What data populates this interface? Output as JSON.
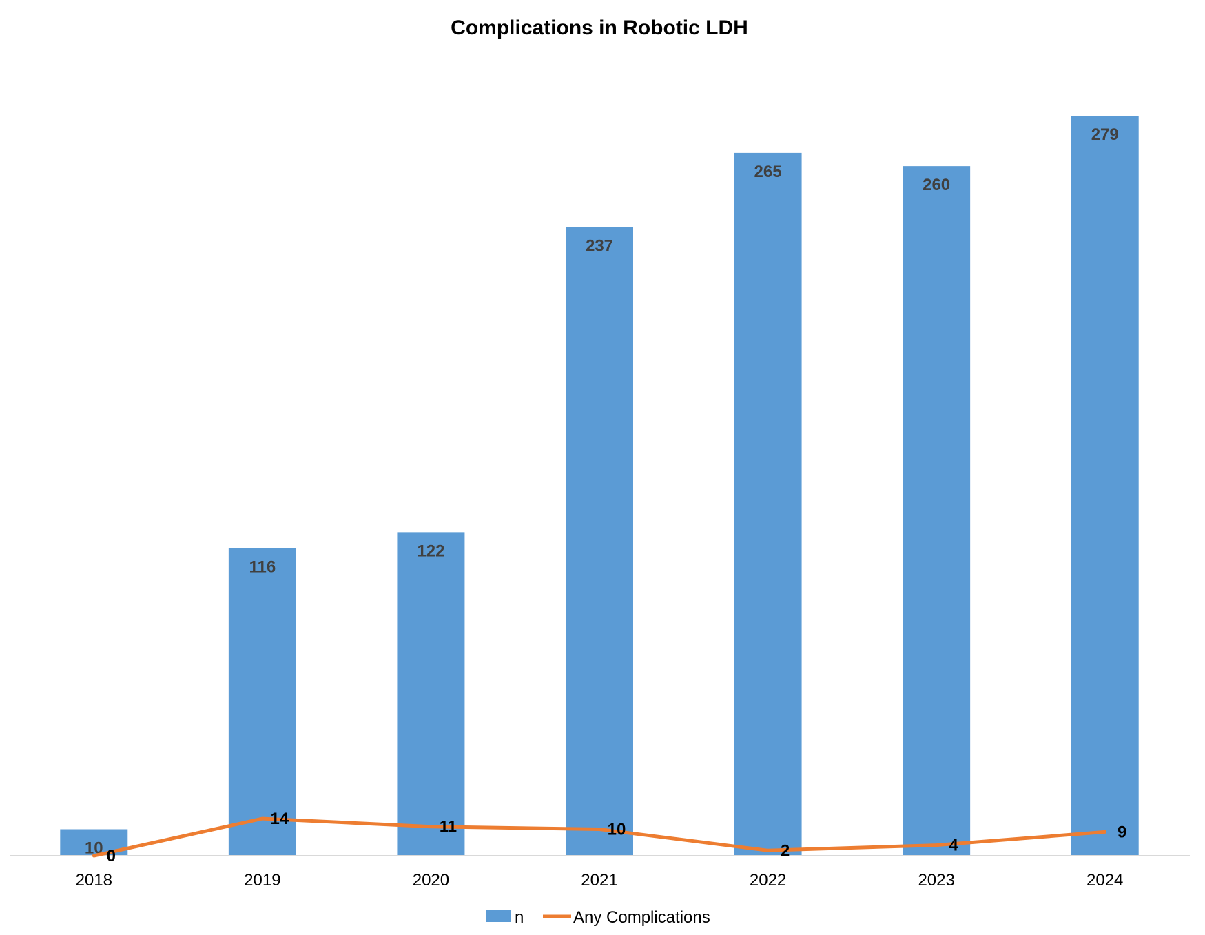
{
  "chart_data": {
    "type": "bar",
    "title": "Complications in Robotic LDH",
    "xlabel": "",
    "ylabel": "",
    "categories": [
      "2018",
      "2019",
      "2020",
      "2021",
      "2022",
      "2023",
      "2024"
    ],
    "series": [
      {
        "name": "n",
        "type": "bar",
        "values": [
          10,
          116,
          122,
          237,
          265,
          260,
          279
        ],
        "color": "#5B9BD5"
      },
      {
        "name": "Any Complications",
        "type": "line",
        "values": [
          0,
          14,
          11,
          10,
          2,
          4,
          9
        ],
        "color": "#ED7D31"
      }
    ],
    "ylim": [
      0,
      279
    ],
    "grid": false,
    "legend": "bottom"
  }
}
